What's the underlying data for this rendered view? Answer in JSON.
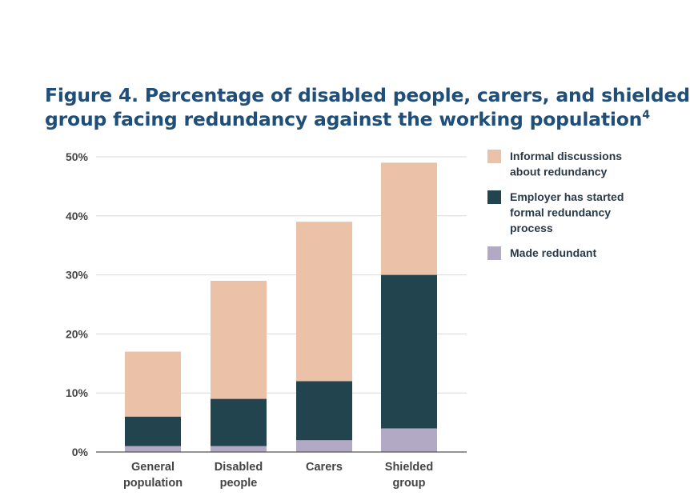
{
  "title": {
    "line1": "Figure 4. Percentage of disabled people, carers, and shielded",
    "line2": "group facing redundancy against the working population",
    "footnote": "4"
  },
  "colors": {
    "informal": "#ebc1a8",
    "employer": "#21444f",
    "redundant": "#b2a9c4",
    "title": "#1f4e79",
    "grid": "#d9d9d9",
    "axis": "#555555"
  },
  "chart_data": {
    "type": "bar",
    "stacked": true,
    "categories": [
      [
        "General",
        "population"
      ],
      [
        "Disabled",
        "people"
      ],
      [
        "Carers"
      ],
      [
        "Shielded",
        "group"
      ]
    ],
    "series": [
      {
        "name": "Made redundant",
        "color_key": "redundant",
        "values": [
          1,
          1,
          2,
          4
        ]
      },
      {
        "name": "Employer has started formal redundancy process",
        "color_key": "employer",
        "values": [
          5,
          8,
          10,
          26
        ]
      },
      {
        "name": "Informal discussions about redundancy",
        "color_key": "informal",
        "values": [
          11,
          20,
          27,
          19
        ]
      }
    ],
    "ylim": [
      0,
      50
    ],
    "yticks": [
      0,
      10,
      20,
      30,
      40,
      50
    ],
    "ytick_labels": [
      "0%",
      "10%",
      "20%",
      "30%",
      "40%",
      "50%"
    ],
    "grid": true,
    "legend_position": "right",
    "legend": [
      {
        "lines": [
          "Informal discussions",
          "about redundancy"
        ],
        "color_key": "informal"
      },
      {
        "lines": [
          "Employer has started",
          "formal redundancy",
          "process"
        ],
        "color_key": "employer"
      },
      {
        "lines": [
          "Made redundant"
        ],
        "color_key": "redundant"
      }
    ]
  }
}
